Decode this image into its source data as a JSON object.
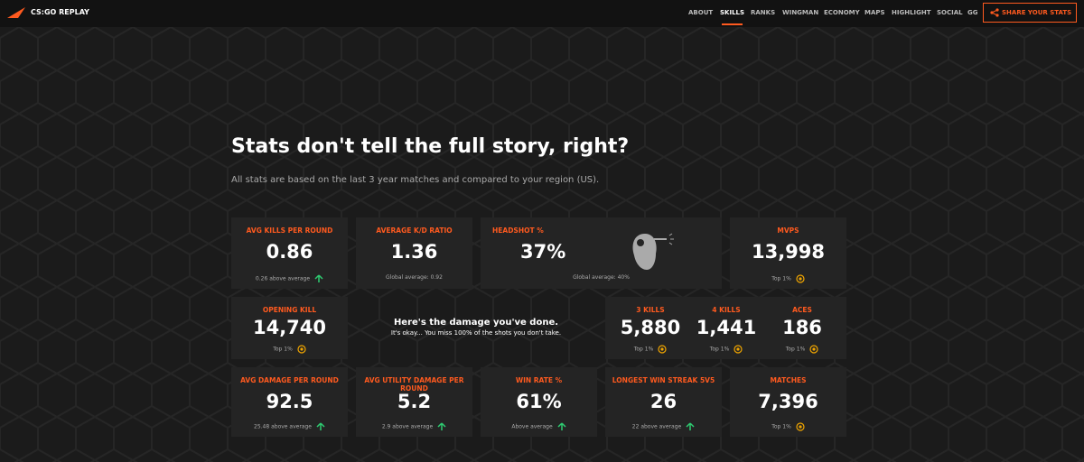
{
  "nav": {
    "brand": "CS:GO REPLAY",
    "links": [
      "ABOUT",
      "SKILLS",
      "RANKS",
      "WINGMAN",
      "ECONOMY",
      "MAPS",
      "HIGHLIGHT",
      "SOCIAL",
      "GG"
    ],
    "active_index": 1,
    "share": "SHARE YOUR STATS"
  },
  "hero": {
    "title": "Stats don't tell the full story, right?",
    "subtitle": "All stats are based on the last 3 year matches and compared to your region (US)."
  },
  "cards": [
    {
      "label": "AVG KILLS PER ROUND",
      "value": "0.86",
      "note": "0.26 above average",
      "marker": "up"
    },
    {
      "label": "AVERAGE K/D RATIO",
      "value": "1.36",
      "note": "Global average: 0.92",
      "marker": "none"
    },
    {
      "label": "HEADSHOT %",
      "value": "37%",
      "note": "Global average: 40%",
      "marker": "none"
    },
    {
      "label": "MVPS",
      "value": "13,998",
      "note": "Top 1%",
      "marker": "medal"
    },
    {
      "label": "OPENING KILL",
      "value": "14,740",
      "note": "Top 1%",
      "marker": "medal"
    },
    {
      "label": "AVG DAMAGE PER ROUND",
      "value": "92.5",
      "note": "25.48 above average",
      "marker": "up"
    },
    {
      "label": "AVG UTILITY DAMAGE PER ROUND",
      "value": "5.2",
      "note": "2.9 above average",
      "marker": "up"
    },
    {
      "label": "WIN RATE %",
      "value": "61%",
      "note": "Above average",
      "marker": "up"
    },
    {
      "label": "LONGEST WIN STREAK 5V5",
      "value": "26",
      "note": "22 above average",
      "marker": "up"
    },
    {
      "label": "MATCHES",
      "value": "7,396",
      "note": "Top 1%",
      "marker": "medal"
    }
  ],
  "multi_card": [
    {
      "label": "3 KILLS",
      "value": "5,880",
      "note": "Top 1%",
      "marker": "medal"
    },
    {
      "label": "4 KILLS",
      "value": "1,441",
      "note": "Top 1%",
      "marker": "medal"
    },
    {
      "label": "ACES",
      "value": "186",
      "note": "Top 1%",
      "marker": "medal"
    }
  ],
  "message": {
    "title": "Here's the damage you've done.",
    "text": "It's okay... You miss 100% of the shots you don't take."
  }
}
